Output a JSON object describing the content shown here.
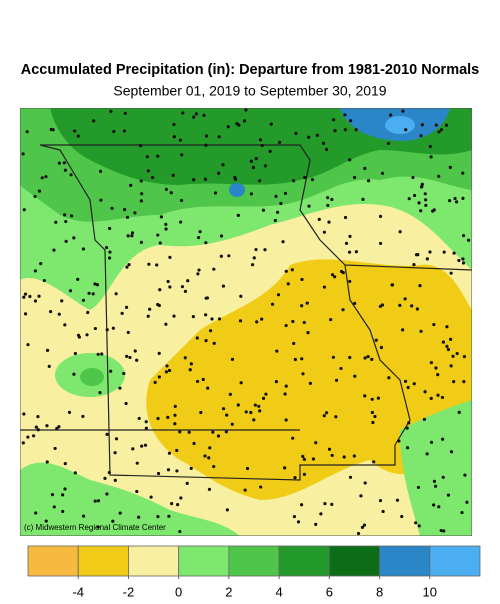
{
  "title": "Accumulated Precipitation (in): Departure from 1981-2010 Normals",
  "subtitle": "September 01, 2019 to September 30, 2019",
  "credit": "(c) Midwestern Regional Climate Center",
  "legend": {
    "colors": [
      "#f7b93e",
      "#f1cc16",
      "#f8f0a0",
      "#7ee86e",
      "#4fc64a",
      "#239a2a",
      "#0b6d15",
      "#2b86c8",
      "#4aaef0"
    ],
    "ticks": [
      -4,
      -2,
      0,
      2,
      4,
      6,
      8,
      10
    ]
  }
}
